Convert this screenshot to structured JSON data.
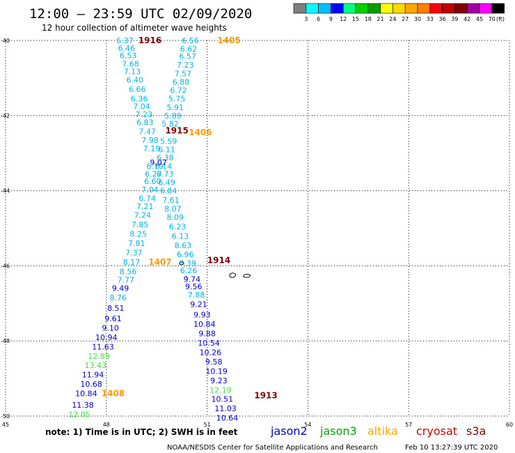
{
  "header": {
    "title": "12:00 – 23:59 UTC 02/09/2020",
    "subtitle": "12 hour collection of altimeter wave heights"
  },
  "color_legend": {
    "unit": "(ft)",
    "bins": [
      {
        "label": "",
        "color": "#7f7f7f"
      },
      {
        "label": "3",
        "color": "#00ffff"
      },
      {
        "label": "6",
        "color": "#00bfff"
      },
      {
        "label": "9",
        "color": "#0000ff"
      },
      {
        "label": "12",
        "color": "#00ff7f"
      },
      {
        "label": "15",
        "color": "#00d000"
      },
      {
        "label": "18",
        "color": "#00a000"
      },
      {
        "label": "21",
        "color": "#ffff00"
      },
      {
        "label": "24",
        "color": "#ffd700"
      },
      {
        "label": "27",
        "color": "#ffa500"
      },
      {
        "label": "30",
        "color": "#ff7f00"
      },
      {
        "label": "33",
        "color": "#ff0000"
      },
      {
        "label": "36",
        "color": "#c00000"
      },
      {
        "label": "39",
        "color": "#800000"
      },
      {
        "label": "42",
        "color": "#a000a0"
      },
      {
        "label": "45",
        "color": "#ff00ff"
      },
      {
        "label": "70",
        "color": "#000000"
      }
    ]
  },
  "footer": {
    "note": "note:  1) Time is in UTC;  2) SWH is in feet",
    "credit": "NOAA/NESDIS Center for Satellite Applications and Research",
    "timestamp": "Feb 10 13:27:39 UTC 2020",
    "satellites": [
      {
        "name": "jason2",
        "color": "#0000cc"
      },
      {
        "name": "jason3",
        "color": "#00a000"
      },
      {
        "name": "altika",
        "color": "#ffa500"
      },
      {
        "name": "cryosat",
        "color": "#cc0000"
      },
      {
        "name": "s3a",
        "color": "#800000"
      }
    ]
  },
  "chart_data": {
    "type": "scatter",
    "xlim": [
      45,
      60
    ],
    "ylim": [
      -50,
      -40
    ],
    "x_ticks": [
      45,
      48,
      51,
      54,
      57,
      60
    ],
    "y_ticks": [
      -40,
      -42,
      -44,
      -46,
      -48,
      -50
    ],
    "grid": true,
    "colors": {
      "cyan": "#00b4e6",
      "blue": "#0000cc",
      "green": "#44dd44",
      "orange": "#ff9900",
      "darkred": "#800000",
      "grid": "#000000"
    },
    "series": [
      {
        "color": "cyan",
        "points": [
          {
            "x": 48.55,
            "y": -40.0,
            "v": "6.37"
          },
          {
            "x": 48.6,
            "y": -40.2,
            "v": "6.46"
          },
          {
            "x": 48.65,
            "y": -40.4,
            "v": "6.53"
          },
          {
            "x": 48.72,
            "y": -40.62,
            "v": "7.68"
          },
          {
            "x": 48.77,
            "y": -40.83,
            "v": "7.13"
          },
          {
            "x": 48.85,
            "y": -41.05,
            "v": "6.40"
          },
          {
            "x": 48.92,
            "y": -41.3,
            "v": "6.66"
          },
          {
            "x": 48.98,
            "y": -41.55,
            "v": "6.36"
          },
          {
            "x": 49.05,
            "y": -41.75,
            "v": "7.04"
          },
          {
            "x": 49.12,
            "y": -41.97,
            "v": "7.23"
          },
          {
            "x": 49.15,
            "y": -42.18,
            "v": "6.83"
          },
          {
            "x": 49.22,
            "y": -42.42,
            "v": "7.47"
          },
          {
            "x": 49.3,
            "y": -42.65,
            "v": "7.98"
          },
          {
            "x": 49.35,
            "y": -42.88,
            "v": "7.19"
          },
          {
            "x": 49.45,
            "y": -43.35,
            "v": "6.79"
          },
          {
            "x": 49.4,
            "y": -43.55,
            "v": "6.27"
          },
          {
            "x": 49.38,
            "y": -43.75,
            "v": "6.60"
          },
          {
            "x": 49.3,
            "y": -43.97,
            "v": "7.04"
          },
          {
            "x": 49.22,
            "y": -44.2,
            "v": "6.74"
          },
          {
            "x": 49.15,
            "y": -44.42,
            "v": "7.21"
          },
          {
            "x": 49.08,
            "y": -44.65,
            "v": "7.24"
          },
          {
            "x": 49.0,
            "y": -44.9,
            "v": "7.85"
          },
          {
            "x": 48.95,
            "y": -45.15,
            "v": "8.25"
          },
          {
            "x": 48.9,
            "y": -45.4,
            "v": "7.81"
          },
          {
            "x": 48.82,
            "y": -45.65,
            "v": "7.37"
          },
          {
            "x": 48.75,
            "y": -45.9,
            "v": "8.17"
          },
          {
            "x": 48.65,
            "y": -46.15,
            "v": "8.56"
          },
          {
            "x": 48.58,
            "y": -46.37,
            "v": "7.77"
          },
          {
            "x": 48.35,
            "y": -46.85,
            "v": "8.76"
          },
          {
            "x": 50.5,
            "y": -40.0,
            "v": "6.56"
          },
          {
            "x": 50.45,
            "y": -40.22,
            "v": "6.62"
          },
          {
            "x": 50.42,
            "y": -40.42,
            "v": "6.57"
          },
          {
            "x": 50.35,
            "y": -40.65,
            "v": "7.23"
          },
          {
            "x": 50.28,
            "y": -40.88,
            "v": "7.57"
          },
          {
            "x": 50.22,
            "y": -41.1,
            "v": "6.88"
          },
          {
            "x": 50.15,
            "y": -41.33,
            "v": "6.72"
          },
          {
            "x": 50.1,
            "y": -41.55,
            "v": "5.75"
          },
          {
            "x": 50.05,
            "y": -41.78,
            "v": "5.91"
          },
          {
            "x": 49.98,
            "y": -42.0,
            "v": "5.89"
          },
          {
            "x": 49.9,
            "y": -42.22,
            "v": "5.82"
          },
          {
            "x": 49.85,
            "y": -42.68,
            "v": "5.59"
          },
          {
            "x": 49.8,
            "y": -42.9,
            "v": "6.11"
          },
          {
            "x": 49.75,
            "y": -43.12,
            "v": "6.38"
          },
          {
            "x": 49.7,
            "y": -43.35,
            "v": "6.14"
          },
          {
            "x": 49.75,
            "y": -43.55,
            "v": "6.73"
          },
          {
            "x": 49.8,
            "y": -43.78,
            "v": "6.49"
          },
          {
            "x": 49.85,
            "y": -44.0,
            "v": "6.84"
          },
          {
            "x": 49.92,
            "y": -44.25,
            "v": "7.61"
          },
          {
            "x": 49.98,
            "y": -44.48,
            "v": "8.07"
          },
          {
            "x": 50.05,
            "y": -44.7,
            "v": "8.09"
          },
          {
            "x": 50.12,
            "y": -44.95,
            "v": "6.23"
          },
          {
            "x": 50.2,
            "y": -45.2,
            "v": "6.13"
          },
          {
            "x": 50.28,
            "y": -45.45,
            "v": "8.63"
          },
          {
            "x": 50.35,
            "y": -45.7,
            "v": "6.96"
          },
          {
            "x": 50.42,
            "y": -45.93,
            "v": "7.39"
          },
          {
            "x": 50.45,
            "y": -46.12,
            "v": "6.26"
          },
          {
            "x": 50.68,
            "y": -46.77,
            "v": "7.88"
          }
        ]
      },
      {
        "color": "blue",
        "points": [
          {
            "x": 49.55,
            "y": -43.25,
            "v": "9.07"
          },
          {
            "x": 48.42,
            "y": -46.6,
            "v": "9.49"
          },
          {
            "x": 48.28,
            "y": -47.12,
            "v": "8.51"
          },
          {
            "x": 48.2,
            "y": -47.4,
            "v": "9.61"
          },
          {
            "x": 48.12,
            "y": -47.65,
            "v": "9.10"
          },
          {
            "x": 48.0,
            "y": -47.9,
            "v": "10.94"
          },
          {
            "x": 47.9,
            "y": -48.15,
            "v": "11.63"
          },
          {
            "x": 47.6,
            "y": -48.9,
            "v": "11.94"
          },
          {
            "x": 47.55,
            "y": -49.15,
            "v": "10.68"
          },
          {
            "x": 47.4,
            "y": -49.4,
            "v": "10.84"
          },
          {
            "x": 47.3,
            "y": -49.7,
            "v": "11.38"
          },
          {
            "x": 50.55,
            "y": -46.35,
            "v": "9.74"
          },
          {
            "x": 50.6,
            "y": -46.55,
            "v": "9.56"
          },
          {
            "x": 50.75,
            "y": -47.02,
            "v": "9.21"
          },
          {
            "x": 50.85,
            "y": -47.3,
            "v": "9.93"
          },
          {
            "x": 50.92,
            "y": -47.55,
            "v": "10.84"
          },
          {
            "x": 51.0,
            "y": -47.8,
            "v": "9.88"
          },
          {
            "x": 51.05,
            "y": -48.05,
            "v": "10.54"
          },
          {
            "x": 51.1,
            "y": -48.3,
            "v": "10.26"
          },
          {
            "x": 51.2,
            "y": -48.55,
            "v": "9.58"
          },
          {
            "x": 51.28,
            "y": -48.8,
            "v": "10.19"
          },
          {
            "x": 51.35,
            "y": -49.05,
            "v": "9.23"
          },
          {
            "x": 51.45,
            "y": -49.55,
            "v": "10.51"
          },
          {
            "x": 51.55,
            "y": -49.8,
            "v": "11.03"
          },
          {
            "x": 51.6,
            "y": -50.05,
            "v": "10.64"
          }
        ]
      },
      {
        "color": "green",
        "points": [
          {
            "x": 47.78,
            "y": -48.4,
            "v": "12.89"
          },
          {
            "x": 47.68,
            "y": -48.65,
            "v": "13.43"
          },
          {
            "x": 47.2,
            "y": -49.95,
            "v": "12.05"
          },
          {
            "x": 51.4,
            "y": -49.3,
            "v": "12.19"
          }
        ]
      }
    ],
    "time_labels": [
      {
        "x": 49.3,
        "y": -40.0,
        "text": "1916",
        "color": "darkred"
      },
      {
        "x": 51.65,
        "y": -40.0,
        "text": "1405",
        "color": "orange"
      },
      {
        "x": 50.1,
        "y": -42.4,
        "text": "1915",
        "color": "darkred"
      },
      {
        "x": 50.8,
        "y": -42.45,
        "text": "1406",
        "color": "orange"
      },
      {
        "x": 49.6,
        "y": -45.9,
        "text": "1407",
        "color": "orange"
      },
      {
        "x": 51.35,
        "y": -45.85,
        "text": "1914",
        "color": "darkred"
      },
      {
        "x": 48.2,
        "y": -49.4,
        "text": "1408",
        "color": "orange"
      },
      {
        "x": 52.75,
        "y": -49.45,
        "text": "1913",
        "color": "darkred"
      }
    ]
  }
}
